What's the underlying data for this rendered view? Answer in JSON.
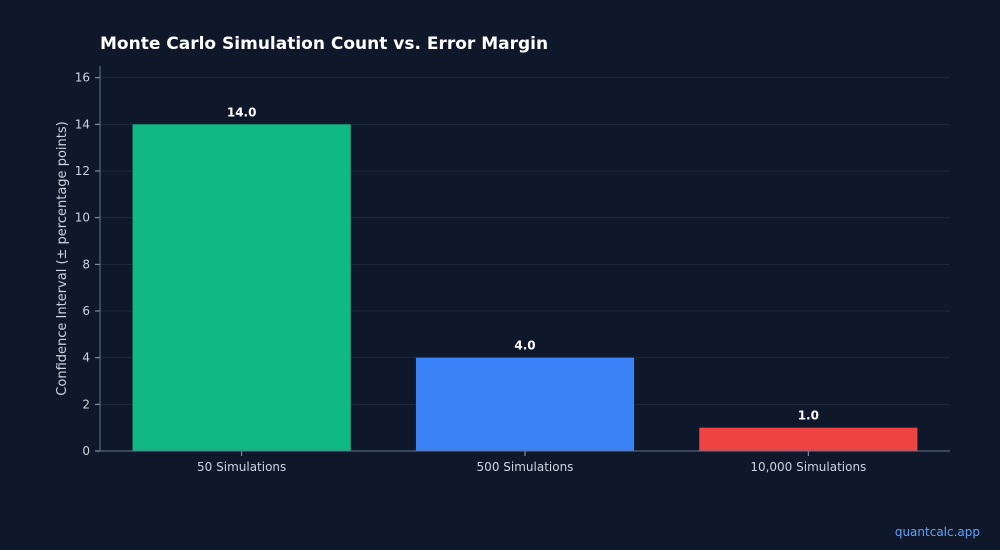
{
  "chart_data": {
    "type": "bar",
    "title": "Monte Carlo Simulation Count vs. Error Margin",
    "xlabel": "",
    "ylabel": "Confidence Interval (± percentage points)",
    "categories": [
      "50 Simulations",
      "500 Simulations",
      "10,000 Simulations"
    ],
    "values": [
      14.0,
      4.0,
      1.0
    ],
    "data_labels": [
      "14.0",
      "4.0",
      "1.0"
    ],
    "colors": [
      "#10b981",
      "#3b82f6",
      "#ef4444"
    ],
    "ylim": [
      0,
      16.5
    ],
    "yticks": [
      0,
      2,
      4,
      6,
      8,
      10,
      12,
      14,
      16
    ],
    "grid": true,
    "legend": "none"
  },
  "footer": {
    "watermark": "quantcalc.app"
  }
}
